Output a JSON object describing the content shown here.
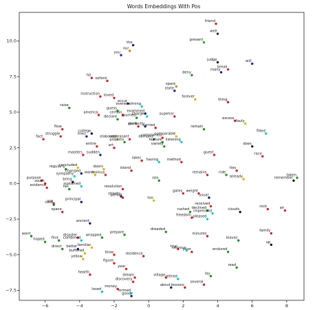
{
  "chart_data": {
    "type": "scatter",
    "title": "Words Embeddings With Pos",
    "xlabel": "",
    "ylabel": "",
    "xlim": [
      -7.5,
      9.0
    ],
    "ylim": [
      -8.2,
      12.0
    ],
    "xticks": [
      -6,
      -4,
      -2,
      0,
      2,
      4,
      6,
      8
    ],
    "yticks": [
      -7.5,
      -5.0,
      -2.5,
      0.0,
      2.5,
      5.0,
      7.5,
      10.0
    ],
    "xtick_labels": [
      "−6",
      "−4",
      "−2",
      "0",
      "2",
      "4",
      "6",
      "8"
    ],
    "ytick_labels": [
      "−7.5",
      "−5.0",
      "−2.5",
      "0.0",
      "2.5",
      "5.0",
      "7.5",
      "10.0"
    ],
    "grid": false,
    "points": [
      {
        "label": "friend",
        "x": 3.9,
        "y": 11.2,
        "color": "#cc2222"
      },
      {
        "label": "well",
        "x": 4.0,
        "y": 10.5,
        "color": "#222222"
      },
      {
        "label": "present",
        "x": 3.2,
        "y": 9.9,
        "color": "#22aa22"
      },
      {
        "label": "the",
        "x": -0.9,
        "y": 9.7,
        "color": "#1a1a80"
      },
      {
        "label": "our",
        "x": -1.1,
        "y": 9.3,
        "color": "#cc8800"
      },
      {
        "label": "you",
        "x": -1.6,
        "y": 9.0,
        "color": "#2222cc"
      },
      {
        "label": "judge",
        "x": 4.0,
        "y": 8.5,
        "color": "#111111"
      },
      {
        "label": "will",
        "x": 6.0,
        "y": 8.4,
        "color": "#2222cc"
      },
      {
        "label": "break",
        "x": 4.6,
        "y": 8.0,
        "color": "#cc2222"
      },
      {
        "label": "many",
        "x": 4.2,
        "y": 7.8,
        "color": "#1a1a80"
      },
      {
        "label": "deny",
        "x": 2.5,
        "y": 7.6,
        "color": "#228822"
      },
      {
        "label": "hit",
        "x": -3.3,
        "y": 7.4,
        "color": "#cc2222"
      },
      {
        "label": "oxford",
        "x": -2.4,
        "y": 7.2,
        "color": "#cc2222"
      },
      {
        "label": "spare",
        "x": 1.6,
        "y": 6.8,
        "color": "#cc8800"
      },
      {
        "label": "state",
        "x": 1.5,
        "y": 6.5,
        "color": "#1a1a80"
      },
      {
        "label": "instruction",
        "x": -2.8,
        "y": 6.1,
        "color": "#cc2222"
      },
      {
        "label": "loved",
        "x": -2.0,
        "y": 6.0,
        "color": "#cc2222"
      },
      {
        "label": "forever",
        "x": 2.7,
        "y": 5.9,
        "color": "#ccbb00"
      },
      {
        "label": "thing",
        "x": 4.6,
        "y": 5.7,
        "color": "#cc2222"
      },
      {
        "label": "occur",
        "x": -1.2,
        "y": 5.6,
        "color": "#1a1a80"
      },
      {
        "label": "overwhelming",
        "x": -0.4,
        "y": 5.4,
        "color": "#00cccc"
      },
      {
        "label": "raise",
        "x": -4.6,
        "y": 5.3,
        "color": "#228822"
      },
      {
        "label": "guess",
        "x": -1.8,
        "y": 5.1,
        "color": "#228822"
      },
      {
        "label": "examined",
        "x": -0.2,
        "y": 4.9,
        "color": "#1a1a80"
      },
      {
        "label": "america",
        "x": -2.9,
        "y": 4.8,
        "color": "#cc2222"
      },
      {
        "label": "certain",
        "x": -1.5,
        "y": 4.8,
        "color": "#cc2222"
      },
      {
        "label": "spurned",
        "x": -0.7,
        "y": 4.6,
        "color": "#228822"
      },
      {
        "label": "charged",
        "x": -0.1,
        "y": 4.7,
        "color": "#00cccc"
      },
      {
        "label": "superior",
        "x": 1.5,
        "y": 4.7,
        "color": "#cc2222"
      },
      {
        "label": "declare",
        "x": -1.8,
        "y": 4.5,
        "color": "#228822"
      },
      {
        "label": "excess",
        "x": 5.0,
        "y": 4.4,
        "color": "#cc2222"
      },
      {
        "label": "fauly",
        "x": 5.6,
        "y": 4.2,
        "color": "#ccbb00"
      },
      {
        "label": "stone",
        "x": -0.6,
        "y": 4.0,
        "color": "#cc2222"
      },
      {
        "label": "perfectly",
        "x": -0.2,
        "y": 4.0,
        "color": "#1a1a80"
      },
      {
        "label": "carried",
        "x": 0.4,
        "y": 3.9,
        "color": "#cc2222"
      },
      {
        "label": "flow",
        "x": -5.0,
        "y": 3.8,
        "color": "#cc2222"
      },
      {
        "label": "remain",
        "x": 3.2,
        "y": 3.8,
        "color": "#228822"
      },
      {
        "label": "filled",
        "x": 6.8,
        "y": 3.5,
        "color": "#00cccc"
      },
      {
        "label": "college",
        "x": -3.3,
        "y": 3.5,
        "color": "#111111"
      },
      {
        "label": "struggle",
        "x": -5.1,
        "y": 3.3,
        "color": "#cc2222"
      },
      {
        "label": "lines",
        "x": -3.6,
        "y": 3.3,
        "color": "#1a1a80"
      },
      {
        "label": "elaborate",
        "x": -1.8,
        "y": 3.1,
        "color": "#ccbb00"
      },
      {
        "label": "unpleasant",
        "x": -1.1,
        "y": 3.1,
        "color": "#cc2222"
      },
      {
        "label": "demand",
        "x": 0.3,
        "y": 3.1,
        "color": "#228822"
      },
      {
        "label": "complained",
        "x": 0.8,
        "y": 3.2,
        "color": "#cc2222"
      },
      {
        "label": "comparable",
        "x": 1.6,
        "y": 3.3,
        "color": "#ccbb00"
      },
      {
        "label": "fact",
        "x": -6.1,
        "y": 3.1,
        "color": "#cc2222"
      },
      {
        "label": "projects",
        "x": -1.4,
        "y": 2.9,
        "color": "#228822"
      },
      {
        "label": "feature",
        "x": 0.8,
        "y": 2.9,
        "color": "#228822"
      },
      {
        "label": "listening",
        "x": 1.9,
        "y": 2.9,
        "color": "#00cccc"
      },
      {
        "label": "entire",
        "x": -3.0,
        "y": 2.6,
        "color": "#cc2222"
      },
      {
        "label": "art",
        "x": -2.0,
        "y": 2.5,
        "color": "#cc2222"
      },
      {
        "label": "variety",
        "x": 0.9,
        "y": 2.6,
        "color": "#228822"
      },
      {
        "label": "does",
        "x": 6.0,
        "y": 2.6,
        "color": "#111111"
      },
      {
        "label": "masters",
        "x": -3.8,
        "y": 2.0,
        "color": "#cc2222"
      },
      {
        "label": "sudden",
        "x": -2.8,
        "y": 2.0,
        "color": "#1a1a80"
      },
      {
        "label": "guest",
        "x": 3.8,
        "y": 2.0,
        "color": "#cc2222"
      },
      {
        "label": "race",
        "x": 6.6,
        "y": 1.9,
        "color": "#cc2222"
      },
      {
        "label": "lakes",
        "x": -0.4,
        "y": 1.6,
        "color": "#cc2222"
      },
      {
        "label": "having",
        "x": 0.6,
        "y": 1.5,
        "color": "#00cccc"
      },
      {
        "label": "method",
        "x": 1.9,
        "y": 1.5,
        "color": "#cc2222"
      },
      {
        "label": "concluded",
        "x": -4.1,
        "y": 1.1,
        "color": "#ccbb00"
      },
      {
        "label": "regularly",
        "x": -4.8,
        "y": 1.0,
        "color": "#228822"
      },
      {
        "label": "doors",
        "x": -2.6,
        "y": 1.0,
        "color": "#ccbb00"
      },
      {
        "label": "island",
        "x": -1.0,
        "y": 0.9,
        "color": "#cc2222"
      },
      {
        "label": "ties",
        "x": 5.1,
        "y": 0.9,
        "color": "#cc2222"
      },
      {
        "label": "changed",
        "x": -3.9,
        "y": 0.7,
        "color": "#1a1a80"
      },
      {
        "label": "warm",
        "x": -3.1,
        "y": 0.6,
        "color": "#ccbb00"
      },
      {
        "label": "anxious",
        "x": -2.5,
        "y": 0.6,
        "color": "#cc2222"
      },
      {
        "label": "remains",
        "x": 3.4,
        "y": 0.6,
        "color": "#cc2222"
      },
      {
        "label": "ride",
        "x": 4.5,
        "y": 0.6,
        "color": "#228822"
      },
      {
        "label": "sympathy",
        "x": -4.3,
        "y": 0.5,
        "color": "#00cccc"
      },
      {
        "label": "already",
        "x": 5.5,
        "y": 0.3,
        "color": "#ccbb00"
      },
      {
        "label": "taken",
        "x": 8.6,
        "y": 0.4,
        "color": "#228822"
      },
      {
        "label": "purpose",
        "x": -6.2,
        "y": 0.2,
        "color": "#cc2222"
      },
      {
        "label": "sea",
        "x": 0.6,
        "y": 0.2,
        "color": "#228822"
      },
      {
        "label": "bring",
        "x": -4.4,
        "y": 0.1,
        "color": "#111111"
      },
      {
        "label": "remember",
        "x": 8.4,
        "y": 0.2,
        "color": "#111111"
      },
      {
        "label": "south",
        "x": -6.0,
        "y": 0.0,
        "color": "#cc2222"
      },
      {
        "label": "sustained",
        "x": -3.9,
        "y": -0.2,
        "color": "#00cccc"
      },
      {
        "label": "evidence",
        "x": -5.9,
        "y": -0.3,
        "color": "#cc2222"
      },
      {
        "label": "resolution",
        "x": -1.5,
        "y": -0.4,
        "color": "#cc2222"
      },
      {
        "label": "fall",
        "x": -4.6,
        "y": -0.4,
        "color": "#228822"
      },
      {
        "label": "gates",
        "x": 2.0,
        "y": -0.7,
        "color": "#cc2222"
      },
      {
        "label": "weight",
        "x": 2.9,
        "y": -0.7,
        "color": "#cc2222"
      },
      {
        "label": "period",
        "x": -1.5,
        "y": -1.0,
        "color": "#cc2222"
      },
      {
        "label": "streets",
        "x": -1.6,
        "y": -0.9,
        "color": "#1a1a80"
      },
      {
        "label": "usual",
        "x": 3.5,
        "y": -1.0,
        "color": "#1a1a80"
      },
      {
        "label": "too",
        "x": 0.3,
        "y": -1.2,
        "color": "#ccbb00"
      },
      {
        "label": "principal",
        "x": -3.9,
        "y": -1.3,
        "color": "#1a1a80"
      },
      {
        "label": "case",
        "x": -5.5,
        "y": -1.5,
        "color": "#228822"
      },
      {
        "label": "use",
        "x": -5.5,
        "y": -1.4,
        "color": "#cc2222"
      },
      {
        "label": "received",
        "x": 3.6,
        "y": -1.6,
        "color": "#cc2222"
      },
      {
        "label": "declined",
        "x": 3.4,
        "y": -1.9,
        "color": "#228822"
      },
      {
        "label": "clouds",
        "x": 5.3,
        "y": -2.0,
        "color": "#111111"
      },
      {
        "label": "rock",
        "x": 6.9,
        "y": -1.8,
        "color": "#cc2222"
      },
      {
        "label": "air",
        "x": 7.9,
        "y": -1.9,
        "color": "#cc2222"
      },
      {
        "label": "space",
        "x": -5.0,
        "y": -2.0,
        "color": "#cc2222"
      },
      {
        "label": "rushed",
        "x": 2.4,
        "y": -2.0,
        "color": "#228822"
      },
      {
        "label": "impressed",
        "x": 3.7,
        "y": -2.1,
        "color": "#00cccc"
      },
      {
        "label": "freedom",
        "x": 2.5,
        "y": -2.4,
        "color": "#cc2222"
      },
      {
        "label": "pleased",
        "x": 3.4,
        "y": -2.5,
        "color": "#00cccc"
      },
      {
        "label": "ancient",
        "x": -3.4,
        "y": -2.8,
        "color": "#1a1a80"
      },
      {
        "label": "dreaded",
        "x": 1.0,
        "y": -3.4,
        "color": "#228822"
      },
      {
        "label": "family",
        "x": 7.1,
        "y": -3.5,
        "color": "#cc2222"
      },
      {
        "label": "prepare",
        "x": -1.4,
        "y": -3.6,
        "color": "#228822"
      },
      {
        "label": "minutes",
        "x": 3.4,
        "y": -3.7,
        "color": "#cc2222"
      },
      {
        "label": "want",
        "x": -6.8,
        "y": -3.7,
        "color": "#228822"
      },
      {
        "label": "disaster",
        "x": -4.1,
        "y": -3.8,
        "color": "#cc2222"
      },
      {
        "label": "wrapped",
        "x": -2.7,
        "y": -3.8,
        "color": "#228822"
      },
      {
        "label": "leaves",
        "x": 5.2,
        "y": -4.0,
        "color": "#228822"
      },
      {
        "label": "hoped",
        "x": -6.0,
        "y": -4.1,
        "color": "#228822"
      },
      {
        "label": "find",
        "x": -5.2,
        "y": -4.0,
        "color": "#228822"
      },
      {
        "label": "combined",
        "x": -3.9,
        "y": -4.0,
        "color": "#00cccc"
      },
      {
        "label": "up",
        "x": 7.1,
        "y": -4.3,
        "color": "#111111"
      },
      {
        "label": "familiar",
        "x": -3.3,
        "y": -4.5,
        "color": "#ccbb00"
      },
      {
        "label": "trial",
        "x": 1.7,
        "y": -4.6,
        "color": "#cc2222"
      },
      {
        "label": "direct",
        "x": -5.0,
        "y": -4.6,
        "color": "#228822"
      },
      {
        "label": "better",
        "x": -4.1,
        "y": -4.6,
        "color": "#1a1a80"
      },
      {
        "label": "nervous",
        "x": 2.2,
        "y": -4.7,
        "color": "#00cccc"
      },
      {
        "label": "prior",
        "x": 2.5,
        "y": -4.8,
        "color": "#cc2222"
      },
      {
        "label": "endured",
        "x": 4.6,
        "y": -4.8,
        "color": "#228822"
      },
      {
        "label": "buffered",
        "x": -3.7,
        "y": -4.9,
        "color": "#ccbb00"
      },
      {
        "label": "blow",
        "x": -2.0,
        "y": -5.0,
        "color": "#cc2222"
      },
      {
        "label": "residence",
        "x": -0.3,
        "y": -5.1,
        "color": "#cc2222"
      },
      {
        "label": "yellow",
        "x": -3.8,
        "y": -5.3,
        "color": "#ccbb00"
      },
      {
        "label": "figure",
        "x": -2.0,
        "y": -5.6,
        "color": "#cc2222"
      },
      {
        "label": "read",
        "x": 5.1,
        "y": -5.9,
        "color": "#228822"
      },
      {
        "label": "year",
        "x": -1.3,
        "y": -6.0,
        "color": "#cc2222"
      },
      {
        "label": "health",
        "x": -3.4,
        "y": -6.4,
        "color": "#cc2222"
      },
      {
        "label": "lay",
        "x": 3.6,
        "y": -6.5,
        "color": "#228822"
      },
      {
        "label": "dream",
        "x": -0.8,
        "y": -6.6,
        "color": "#cc2222"
      },
      {
        "label": "village",
        "x": 1.0,
        "y": -6.6,
        "color": "#cc2222"
      },
      {
        "label": "retired",
        "x": 1.7,
        "y": -6.7,
        "color": "#00cccc"
      },
      {
        "label": "discovery",
        "x": -0.9,
        "y": -6.9,
        "color": "#cc2222"
      },
      {
        "label": "several",
        "x": 3.2,
        "y": -7.1,
        "color": "#cc2222"
      },
      {
        "label": "about",
        "x": 1.3,
        "y": -7.3,
        "color": "#1a1a80"
      },
      {
        "label": "lessons",
        "x": 2.1,
        "y": -7.3,
        "color": "#cc2222"
      },
      {
        "label": "money",
        "x": -1.8,
        "y": -7.4,
        "color": "#cc2222"
      },
      {
        "label": "loved",
        "x": -2.7,
        "y": -7.6,
        "color": "#00cccc"
      },
      {
        "label": "formed",
        "x": -1.0,
        "y": -7.7,
        "color": "#00cccc"
      },
      {
        "label": "good",
        "x": -1.0,
        "y": -7.9,
        "color": "#1a1a80"
      }
    ]
  }
}
